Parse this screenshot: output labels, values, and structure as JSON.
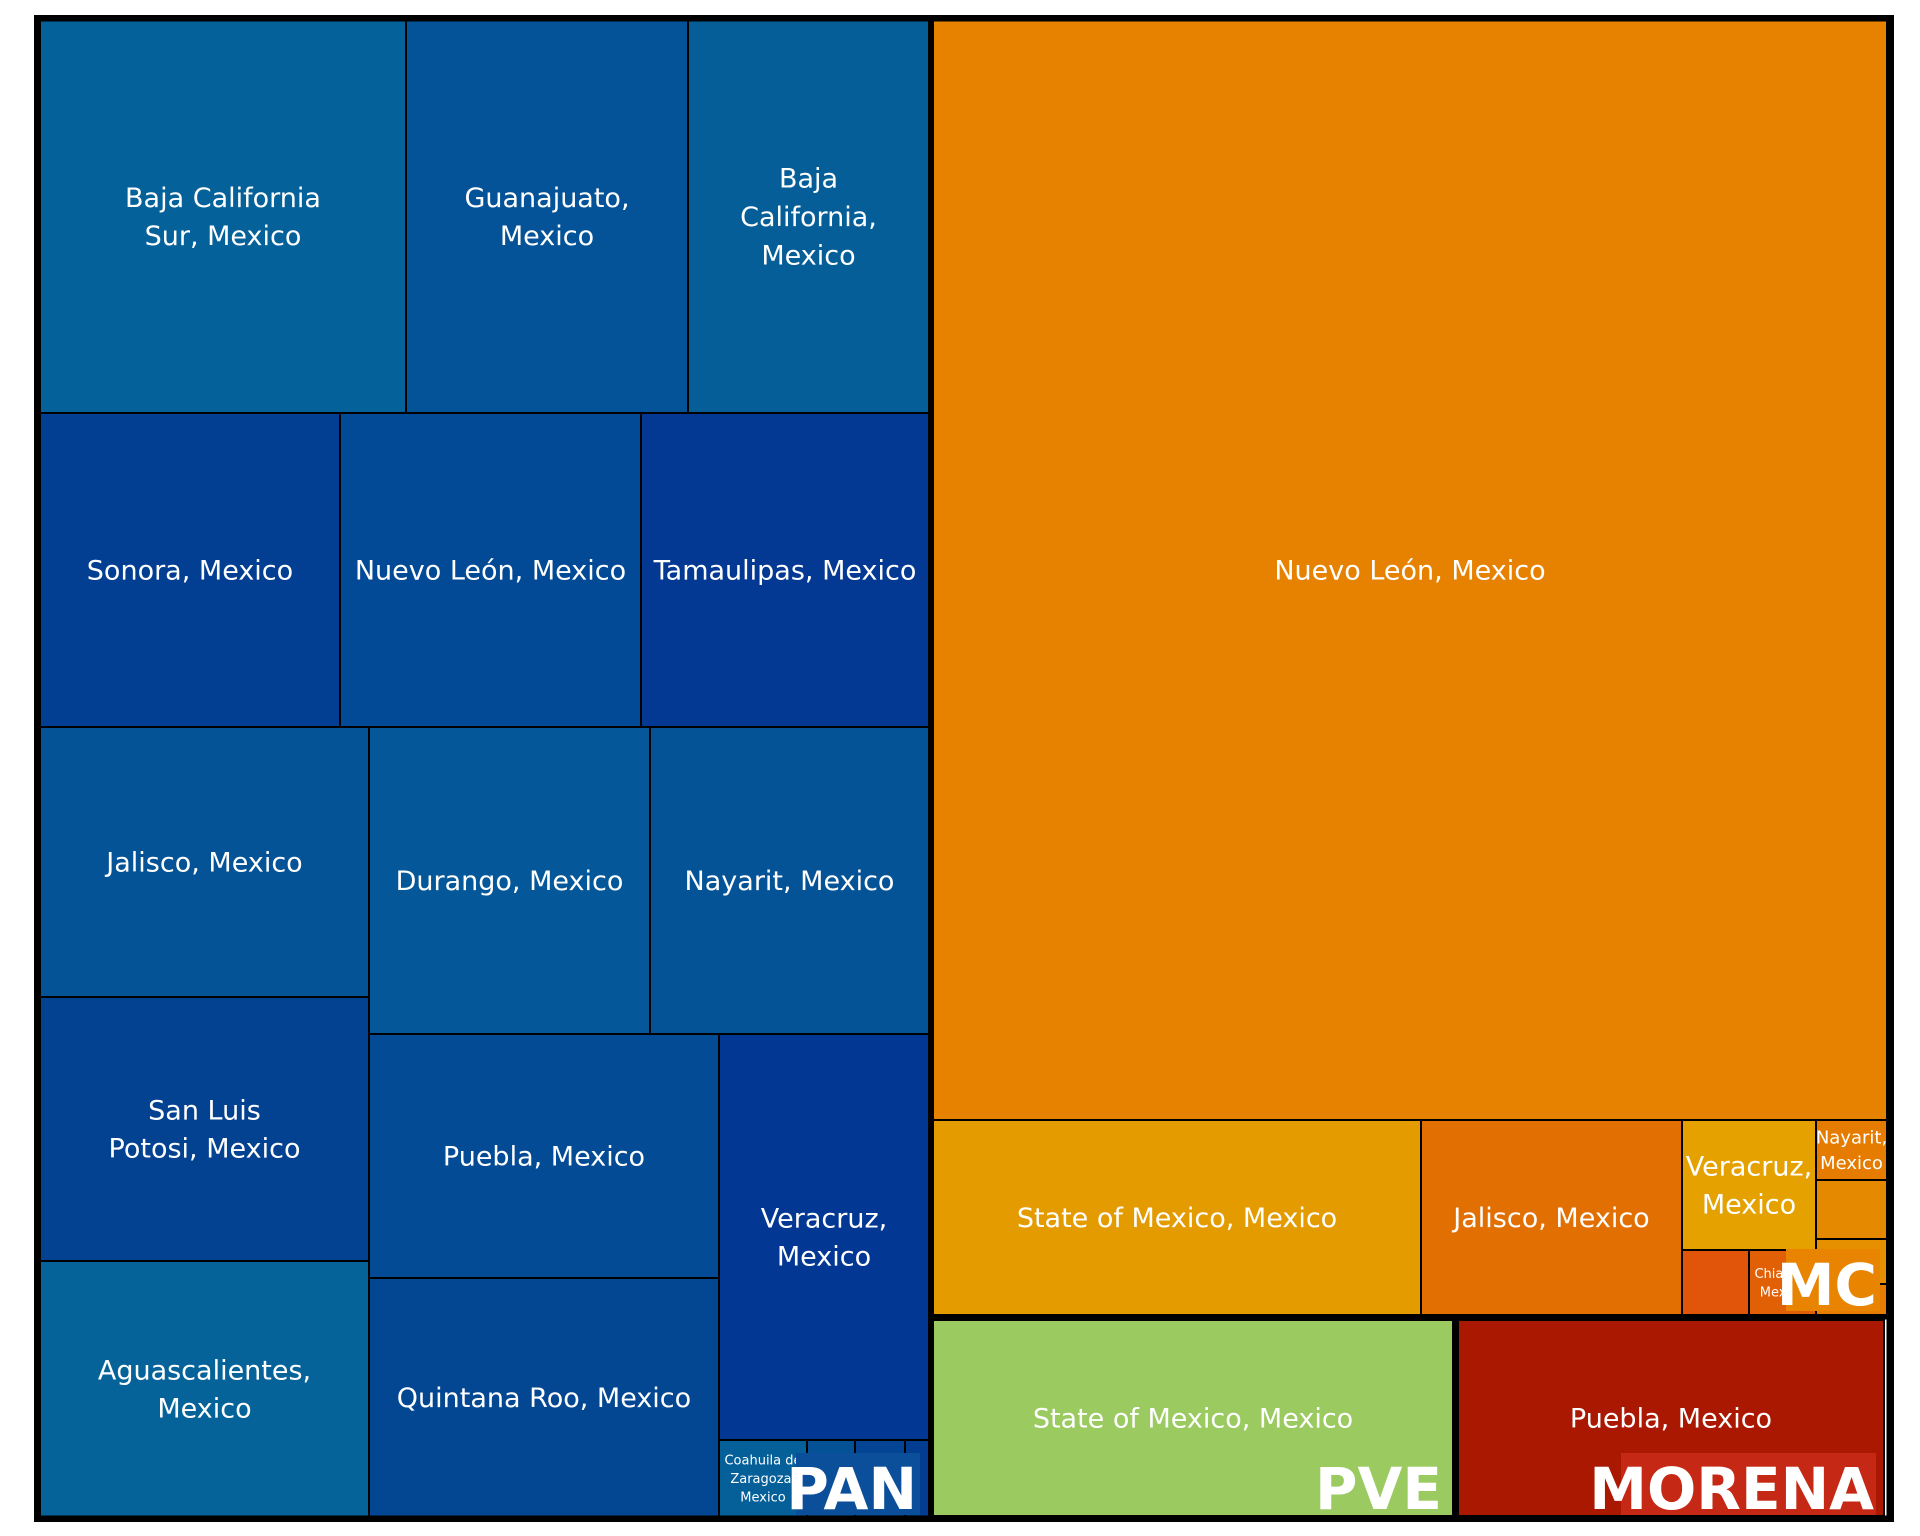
{
  "chart_data": {
    "type": "treemap",
    "groups": [
      {
        "name": "PAN",
        "label_bg": "#0b4f9a",
        "items": [
          {
            "label": "Baja California Sur, Mexico",
            "color": "#05619a"
          },
          {
            "label": "Guanajuato, Mexico",
            "color": "#045398"
          },
          {
            "label": "Baja California, Mexico",
            "color": "#055e98"
          },
          {
            "label": "Sonora, Mexico",
            "color": "#023f92"
          },
          {
            "label": "Nuevo León, Mexico",
            "color": "#034a96"
          },
          {
            "label": "Tamaulipas, Mexico",
            "color": "#033893"
          },
          {
            "label": "Jalisco, Mexico",
            "color": "#045396"
          },
          {
            "label": "Durango, Mexico",
            "color": "#045899"
          },
          {
            "label": "Nayarit, Mexico",
            "color": "#045397"
          },
          {
            "label": "San Luis Potosi, Mexico",
            "color": "#034291"
          },
          {
            "label": "Puebla, Mexico",
            "color": "#034b95"
          },
          {
            "label": "Veracruz, Mexico",
            "color": "#023793"
          },
          {
            "label": "Aguascalientes, Mexico",
            "color": "#05639a"
          },
          {
            "label": "Quintana Roo, Mexico",
            "color": "#034793"
          },
          {
            "label": "Coahuila de Zaragoza, Mexico",
            "color": "#05609a"
          },
          {
            "label": "",
            "color": "#045196"
          },
          {
            "label": "",
            "color": "#034594"
          },
          {
            "label": "",
            "color": "#033d92"
          }
        ]
      },
      {
        "name": "MC",
        "label_bg": "#e88400",
        "items": [
          {
            "label": "Nuevo León, Mexico",
            "color": "#e68200"
          },
          {
            "label": "State of Mexico, Mexico",
            "color": "#e39b00"
          },
          {
            "label": "Jalisco, Mexico",
            "color": "#e26f02"
          },
          {
            "label": "Veracruz, Mexico",
            "color": "#e4a100"
          },
          {
            "label": "Nayarit, Mexico",
            "color": "#e57c00"
          },
          {
            "label": "",
            "color": "#e58a00"
          },
          {
            "label": "",
            "color": "#e69000"
          },
          {
            "label": "",
            "color": "#e0550a"
          },
          {
            "label": "Chiapas, Mexico",
            "color": "#e16006"
          },
          {
            "label": "",
            "color": "#e67c00"
          }
        ]
      },
      {
        "name": "PVE",
        "items": [
          {
            "label": "State of Mexico, Mexico",
            "color": "#9aca60"
          }
        ]
      },
      {
        "name": "MORENA",
        "label_bg": "#c52814",
        "items": [
          {
            "label": "Puebla, Mexico",
            "color": "#ab1801"
          }
        ]
      }
    ]
  }
}
